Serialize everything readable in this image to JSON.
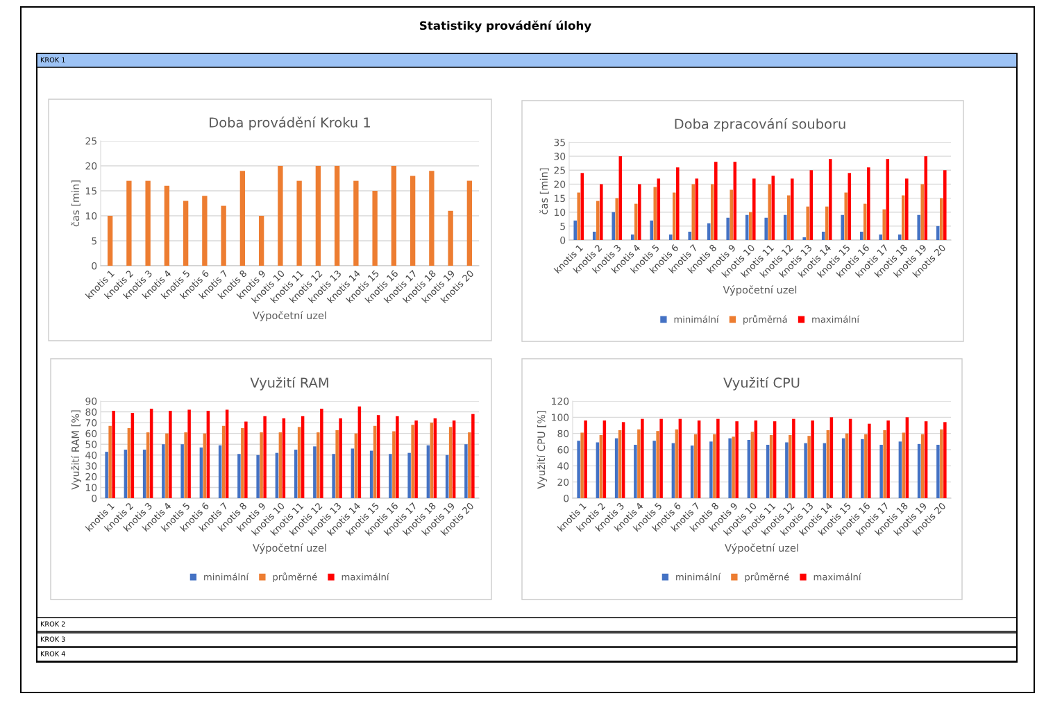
{
  "chart_data": [
    {
      "type": "bar",
      "title": "Doba provádění Kroku 1",
      "xlabel": "Výpočetní uzel",
      "ylabel": "čas [min]",
      "categories": [
        "knotis 1",
        "knotis 2",
        "knotis 3",
        "knotis 4",
        "knotis 5",
        "knotis 6",
        "knotis 7",
        "knotis 8",
        "knotis 9",
        "knotis 10",
        "knotis 11",
        "knotis 12",
        "knotis 13",
        "knotis 14",
        "knotis 15",
        "knotis 16",
        "knotis 17",
        "knotis 18",
        "knotis 19",
        "knotis 20"
      ],
      "series": [
        {
          "color": "#ed7d31",
          "values": [
            10,
            17,
            17,
            16,
            13,
            14,
            12,
            19,
            10,
            20,
            17,
            20,
            20,
            17,
            15,
            20,
            18,
            19,
            11,
            17
          ]
        }
      ],
      "ylim": [
        0,
        25
      ],
      "yticks": [
        0,
        5,
        10,
        15,
        20,
        25
      ],
      "grid": "y",
      "legend": false
    },
    {
      "type": "bar",
      "title": "Doba zpracování souboru",
      "xlabel": "Výpočetní uzel",
      "ylabel": "čas [min]",
      "categories": [
        "knotis 1",
        "knotis 2",
        "knotis 3",
        "knotis 4",
        "knotis 5",
        "knotis 6",
        "knotis 7",
        "knotis 8",
        "knotis 9",
        "knotis 10",
        "knotis 11",
        "knotis 12",
        "knotis 13",
        "knotis 14",
        "knotis 15",
        "knotis 16",
        "knotis 17",
        "knotis 18",
        "knotis 19",
        "knotis 20"
      ],
      "series": [
        {
          "name": "minimální",
          "color": "#4472c4",
          "values": [
            7,
            3,
            10,
            2,
            7,
            2,
            3,
            6,
            8,
            9,
            8,
            9,
            1,
            3,
            9,
            3,
            2,
            2,
            9,
            5
          ]
        },
        {
          "name": "průměrná",
          "color": "#ed7d31",
          "values": [
            17,
            14,
            15,
            13,
            19,
            17,
            20,
            20,
            18,
            10,
            20,
            16,
            12,
            12,
            17,
            13,
            11,
            16,
            20,
            15
          ]
        },
        {
          "name": "maximální",
          "color": "#ff0000",
          "values": [
            24,
            20,
            30,
            20,
            22,
            26,
            22,
            28,
            28,
            22,
            23,
            22,
            25,
            29,
            24,
            26,
            29,
            22,
            30,
            25
          ]
        }
      ],
      "ylim": [
        0,
        35
      ],
      "yticks": [
        0,
        5,
        10,
        15,
        20,
        25,
        30,
        35
      ],
      "grid": "y",
      "legend": "bottom"
    },
    {
      "type": "bar",
      "title": "Využití RAM",
      "xlabel": "Výpočetní uzel",
      "ylabel": "Využití RAM [%]",
      "categories": [
        "knotis 1",
        "knotis 2",
        "knotis 3",
        "knotis 4",
        "knotis 5",
        "knotis 6",
        "knotis 7",
        "knotis 8",
        "knotis 9",
        "knotis 10",
        "knotis 11",
        "knotis 12",
        "knotis 13",
        "knotis 14",
        "knotis 15",
        "knotis 16",
        "knotis 17",
        "knotis 18",
        "knotis 19",
        "knotis 20"
      ],
      "series": [
        {
          "name": "minimální",
          "color": "#4472c4",
          "values": [
            43,
            45,
            45,
            50,
            50,
            47,
            49,
            41,
            40,
            42,
            45,
            48,
            41,
            46,
            44,
            41,
            42,
            49,
            40,
            50
          ]
        },
        {
          "name": "průměrné",
          "color": "#ed7d31",
          "values": [
            67,
            65,
            61,
            60,
            61,
            60,
            67,
            65,
            61,
            61,
            66,
            61,
            63,
            60,
            67,
            62,
            68,
            70,
            66,
            61
          ]
        },
        {
          "name": "maximální",
          "color": "#ff0000",
          "values": [
            81,
            79,
            83,
            81,
            82,
            81,
            82,
            71,
            76,
            74,
            76,
            83,
            74,
            85,
            77,
            76,
            72,
            74,
            72,
            78
          ]
        }
      ],
      "ylim": [
        0,
        90
      ],
      "yticks": [
        0,
        10,
        20,
        30,
        40,
        50,
        60,
        70,
        80,
        90
      ],
      "grid": "y",
      "legend": "bottom"
    },
    {
      "type": "bar",
      "title": "Využití CPU",
      "xlabel": "Výpočetní uzel",
      "ylabel": "Využití CPU [%]",
      "categories": [
        "knotis 1",
        "knotis 2",
        "knotis 3",
        "knotis 4",
        "knotis 5",
        "knotis 6",
        "knotis 7",
        "knotis 8",
        "knotis 9",
        "knotis 10",
        "knotis 11",
        "knotis 12",
        "knotis 13",
        "knotis 14",
        "knotis 15",
        "knotis 16",
        "knotis 17",
        "knotis 18",
        "knotis 19",
        "knotis 20"
      ],
      "series": [
        {
          "name": "minimální",
          "color": "#4472c4",
          "values": [
            71,
            69,
            74,
            66,
            71,
            68,
            65,
            70,
            74,
            72,
            66,
            69,
            68,
            68,
            74,
            73,
            66,
            70,
            67,
            66
          ]
        },
        {
          "name": "průměrné",
          "color": "#ed7d31",
          "values": [
            81,
            78,
            84,
            85,
            83,
            85,
            79,
            79,
            76,
            82,
            78,
            78,
            77,
            84,
            80,
            79,
            84,
            81,
            79,
            85
          ]
        },
        {
          "name": "maximální",
          "color": "#ff0000",
          "values": [
            96,
            96,
            94,
            98,
            98,
            98,
            96,
            98,
            95,
            96,
            95,
            98,
            96,
            100,
            98,
            92,
            96,
            100,
            95,
            94
          ]
        }
      ],
      "ylim": [
        0,
        120
      ],
      "yticks": [
        0,
        20,
        40,
        60,
        80,
        100,
        120
      ],
      "grid": "y",
      "legend": "bottom"
    },
    {
      "type": "other",
      "title": "Statistiky provádění úlohy",
      "annotations": [
        "KROK 1",
        "KROK 2",
        "KROK 3",
        "KROK 4"
      ]
    }
  ]
}
